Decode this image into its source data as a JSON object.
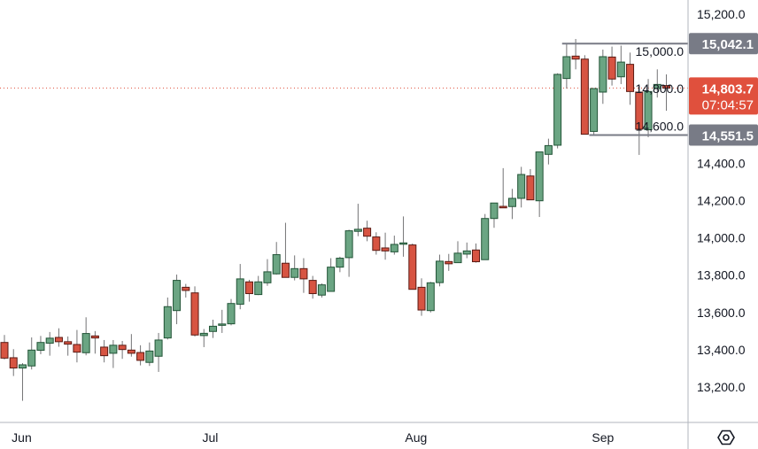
{
  "chart_data": {
    "type": "candlestick",
    "title": "",
    "ylim": [
      13100,
      15300
    ],
    "y_ticks": [
      15200,
      15000,
      14800,
      14600,
      14400,
      14200,
      14000,
      13800,
      13600,
      13400,
      13200
    ],
    "y_tick_labels": [
      "15,200.0",
      "15,000.0",
      "14,800.0",
      "14,600.0",
      "14,400.0",
      "14,200.0",
      "14,000.0",
      "13,800.0",
      "13,600.0",
      "13,400.0",
      "13,200.0"
    ],
    "x_labels": [
      {
        "label": "Jun",
        "bar_index": 1.9
      },
      {
        "label": "Jul",
        "bar_index": 22.7
      },
      {
        "label": "Aug",
        "bar_index": 45.4
      },
      {
        "label": "Sep",
        "bar_index": 66.0
      }
    ],
    "colors": {
      "up": "#6ba583",
      "up_border": "#225437",
      "down": "#d75442",
      "down_border": "#5b1a13",
      "wick": "#737375",
      "level": "#787b86",
      "last": "#e0503d",
      "grid": "#999999"
    },
    "candles": [
      [
        13439,
        13479,
        13348,
        13355
      ],
      [
        13357,
        13403,
        13259,
        13302
      ],
      [
        13302,
        13328,
        13126,
        13319
      ],
      [
        13313,
        13466,
        13294,
        13398
      ],
      [
        13397,
        13474,
        13376,
        13439
      ],
      [
        13435,
        13495,
        13368,
        13462
      ],
      [
        13466,
        13515,
        13416,
        13443
      ],
      [
        13443,
        13471,
        13368,
        13430
      ],
      [
        13428,
        13506,
        13332,
        13387
      ],
      [
        13384,
        13574,
        13370,
        13487
      ],
      [
        13474,
        13500,
        13379,
        13463
      ],
      [
        13414,
        13452,
        13332,
        13368
      ],
      [
        13381,
        13452,
        13302,
        13424
      ],
      [
        13424,
        13447,
        13351,
        13401
      ],
      [
        13398,
        13484,
        13363,
        13381
      ],
      [
        13385,
        13424,
        13316,
        13343
      ],
      [
        13332,
        13439,
        13313,
        13393
      ],
      [
        13365,
        13490,
        13281,
        13452
      ],
      [
        13463,
        13680,
        13455,
        13631
      ],
      [
        13610,
        13803,
        13537,
        13772
      ],
      [
        13735,
        13753,
        13680,
        13718
      ],
      [
        13705,
        13740,
        13471,
        13479
      ],
      [
        13476,
        13511,
        13414,
        13488
      ],
      [
        13498,
        13561,
        13463,
        13526
      ],
      [
        13535,
        13614,
        13490,
        13538
      ],
      [
        13539,
        13672,
        13531,
        13648
      ],
      [
        13644,
        13860,
        13617,
        13780
      ],
      [
        13764,
        13775,
        13658,
        13701
      ],
      [
        13696,
        13796,
        13693,
        13764
      ],
      [
        13759,
        13886,
        13743,
        13818
      ],
      [
        13807,
        13978,
        13803,
        13910
      ],
      [
        13864,
        14081,
        13788,
        13788
      ],
      [
        13788,
        13906,
        13772,
        13835
      ],
      [
        13835,
        13891,
        13705,
        13780
      ],
      [
        13772,
        13796,
        13674,
        13701
      ],
      [
        13693,
        13756,
        13680,
        13748
      ],
      [
        13713,
        13891,
        13713,
        13843
      ],
      [
        13843,
        13899,
        13816,
        13891
      ],
      [
        13894,
        14044,
        13791,
        14038
      ],
      [
        14035,
        14183,
        14009,
        14046
      ],
      [
        14052,
        14092,
        13982,
        14009
      ],
      [
        14005,
        14030,
        13910,
        13933
      ],
      [
        13946,
        14028,
        13883,
        13930
      ],
      [
        13925,
        14012,
        13910,
        13965
      ],
      [
        13970,
        14115,
        13899,
        13973
      ],
      [
        13962,
        13970,
        13724,
        13724
      ],
      [
        13735,
        13783,
        13582,
        13613
      ],
      [
        13610,
        13764,
        13600,
        13759
      ],
      [
        13760,
        13910,
        13740,
        13875
      ],
      [
        13873,
        13914,
        13823,
        13861
      ],
      [
        13867,
        13982,
        13867,
        13918
      ],
      [
        13913,
        13975,
        13891,
        13930
      ],
      [
        13935,
        13970,
        13867,
        13872
      ],
      [
        13883,
        14128,
        13883,
        14104
      ],
      [
        14104,
        14187,
        14054,
        14187
      ],
      [
        14169,
        14374,
        14160,
        14161
      ],
      [
        14168,
        14263,
        14101,
        14212
      ],
      [
        14212,
        14381,
        14163,
        14340
      ],
      [
        14332,
        14369,
        14204,
        14204
      ],
      [
        14199,
        14461,
        14112,
        14461
      ],
      [
        14448,
        14532,
        14394,
        14495
      ],
      [
        14497,
        14883,
        14480,
        14877
      ],
      [
        14855,
        15042,
        14801,
        14972
      ],
      [
        14975,
        15067,
        14904,
        14959
      ],
      [
        14959,
        14980,
        14556,
        14556
      ],
      [
        14571,
        14801,
        14548,
        14801
      ],
      [
        14782,
        15010,
        14719,
        14972
      ],
      [
        14970,
        15026,
        14817,
        14852
      ],
      [
        14864,
        15031,
        14825,
        14943
      ],
      [
        14931,
        14994,
        14714,
        14785
      ],
      [
        14782,
        14817,
        14445,
        14583
      ],
      [
        14580,
        14852,
        14540,
        14785
      ],
      [
        14801,
        14904,
        14753,
        14823
      ],
      [
        14817,
        14877,
        14682,
        14803.7
      ]
    ],
    "candle_format": [
      "open",
      "high",
      "low",
      "close"
    ],
    "levels": [
      {
        "value": 15042.1,
        "label": "15,042.1",
        "from_bar": 61.5
      },
      {
        "value": 14551.5,
        "label": "14,551.5",
        "from_bar": 64.5
      }
    ],
    "last_price": {
      "value": 14803.7,
      "label": "14,803.7",
      "countdown": "07:04:57"
    }
  }
}
